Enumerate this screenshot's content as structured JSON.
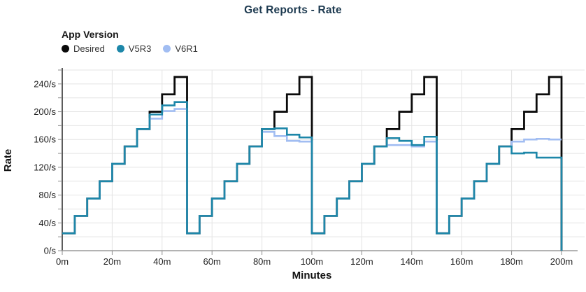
{
  "title": "Get Reports - Rate",
  "legend": {
    "title": "App Version",
    "items": [
      {
        "label": "Desired",
        "color": "#0a0a0a"
      },
      {
        "label": "V5R3",
        "color": "#1d87a9"
      },
      {
        "label": "V6R1",
        "color": "#a1bdf2"
      }
    ]
  },
  "chart_data": {
    "type": "line",
    "step": "step-after",
    "title": "Get Reports - Rate",
    "xlabel": "Minutes",
    "ylabel": "Rate",
    "x_unit_suffix": "m",
    "y_unit_suffix": "/s",
    "xlim": [
      0,
      200
    ],
    "ylim": [
      0,
      260
    ],
    "grid": true,
    "grid_color": "#e4e4e4",
    "legend_position": "top-left",
    "x_tick_values": [
      0,
      20,
      40,
      60,
      80,
      100,
      120,
      140,
      160,
      180,
      200
    ],
    "x_tick_labels": [
      "0m",
      "20m",
      "40m",
      "60m",
      "80m",
      "100m",
      "120m",
      "140m",
      "160m",
      "180m",
      "200m"
    ],
    "y_tick_values": [
      0,
      40,
      80,
      120,
      160,
      200,
      240
    ],
    "y_tick_labels": [
      "0/s",
      "40/s",
      "80/s",
      "120/s",
      "160/s",
      "200/s",
      "240/s"
    ],
    "y_minor_tick_step": 20,
    "step_minutes": 5,
    "x": [
      0,
      5,
      10,
      15,
      20,
      25,
      30,
      35,
      40,
      45,
      50,
      55,
      60,
      65,
      70,
      75,
      80,
      85,
      90,
      95,
      100,
      105,
      110,
      115,
      120,
      125,
      130,
      135,
      140,
      145,
      150,
      155,
      160,
      165,
      170,
      175,
      180,
      185,
      190,
      195
    ],
    "series": [
      {
        "name": "Desired",
        "color": "#0a0a0a",
        "values": [
          25,
          50,
          75,
          100,
          125,
          150,
          175,
          200,
          225,
          250,
          25,
          50,
          75,
          100,
          125,
          150,
          175,
          200,
          225,
          250,
          25,
          50,
          75,
          100,
          125,
          150,
          175,
          200,
          225,
          250,
          25,
          50,
          75,
          100,
          125,
          150,
          175,
          200,
          225,
          250
        ],
        "end_drop_to": 0
      },
      {
        "name": "V5R3",
        "color": "#1d87a9",
        "values": [
          25,
          50,
          75,
          100,
          125,
          150,
          175,
          196,
          209,
          214,
          25,
          50,
          75,
          100,
          125,
          150,
          175,
          176,
          167,
          163,
          25,
          50,
          75,
          100,
          125,
          150,
          162,
          158,
          152,
          164,
          25,
          50,
          75,
          100,
          125,
          150,
          140,
          141,
          134,
          134
        ],
        "end_drop_to": 0
      },
      {
        "name": "V6R1",
        "color": "#a1bdf2",
        "values": [
          25,
          50,
          75,
          100,
          125,
          150,
          175,
          190,
          201,
          204,
          25,
          50,
          75,
          100,
          125,
          150,
          171,
          165,
          158,
          157,
          25,
          50,
          75,
          100,
          125,
          150,
          152,
          152,
          150,
          157,
          25,
          50,
          75,
          100,
          125,
          150,
          157,
          160,
          161,
          160
        ],
        "end_drop_to": null
      }
    ],
    "draw_order": [
      0,
      2,
      1
    ]
  }
}
